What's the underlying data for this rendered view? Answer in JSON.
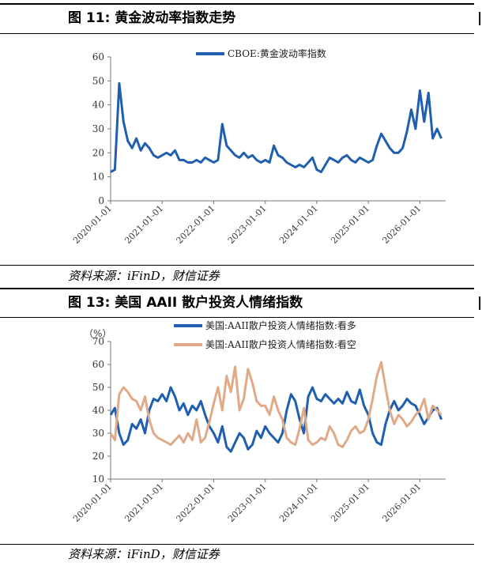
{
  "figure1": {
    "title": "图 11:  黄金波动率指数走势",
    "source": "资料来源：iFinD，财信证券"
  },
  "figure2": {
    "title": "图 13:  美国 AAII 散户投资人情绪指数",
    "source": "资料来源：iFinD，财信证券"
  },
  "chart_data": [
    {
      "type": "line",
      "title": "",
      "xlabel": "",
      "ylabel": "",
      "ylim": [
        0,
        60
      ],
      "yticks": [
        0,
        10,
        20,
        30,
        40,
        50,
        60
      ],
      "xticks": [
        "2020-01-01",
        "2021-01-01",
        "2022-01-01",
        "2023-01-01",
        "2024-01-01",
        "2025-01-01",
        "2026-01-01"
      ],
      "legend_position": "top-center",
      "series": [
        {
          "name": "CBOE:黄金波动率指数",
          "color": "#1f5fae",
          "x": [
            "2020-01",
            "2020-02",
            "2020-03",
            "2020-04",
            "2020-05",
            "2020-06",
            "2020-07",
            "2020-08",
            "2020-09",
            "2020-10",
            "2020-11",
            "2020-12",
            "2021-01",
            "2021-02",
            "2021-03",
            "2021-04",
            "2021-05",
            "2021-06",
            "2021-07",
            "2021-08",
            "2021-09",
            "2021-10",
            "2021-11",
            "2021-12",
            "2022-01",
            "2022-02",
            "2022-03",
            "2022-04",
            "2022-05",
            "2022-06",
            "2022-07",
            "2022-08",
            "2022-09",
            "2022-10",
            "2022-11",
            "2022-12",
            "2023-01",
            "2023-02",
            "2023-03",
            "2023-04",
            "2023-05",
            "2023-06",
            "2023-07",
            "2023-08",
            "2023-09",
            "2023-10",
            "2023-11",
            "2023-12",
            "2024-01",
            "2024-02",
            "2024-03",
            "2024-04",
            "2024-05",
            "2024-06",
            "2024-07",
            "2024-08",
            "2024-09",
            "2024-10",
            "2024-11",
            "2024-12",
            "2025-01",
            "2025-02",
            "2025-03",
            "2025-04",
            "2025-05",
            "2025-06",
            "2025-07",
            "2025-08",
            "2025-09",
            "2025-10",
            "2025-11",
            "2025-12",
            "2026-01",
            "2026-02",
            "2026-03",
            "2026-04",
            "2026-05",
            "2026-06"
          ],
          "values": [
            12,
            13,
            49,
            33,
            25,
            22,
            26,
            21,
            24,
            22,
            19,
            18,
            19,
            20,
            19,
            21,
            17,
            17,
            16,
            16,
            17,
            16,
            18,
            17,
            16,
            17,
            32,
            23,
            21,
            19,
            18,
            20,
            18,
            19,
            17,
            16,
            17,
            16,
            23,
            19,
            18,
            16,
            15,
            14,
            15,
            14,
            16,
            18,
            13,
            12,
            15,
            18,
            17,
            16,
            18,
            19,
            17,
            16,
            18,
            17,
            16,
            17,
            23,
            28,
            25,
            22,
            20,
            20,
            22,
            29,
            38,
            30,
            46,
            33,
            45,
            26,
            30,
            26
          ]
        }
      ]
    },
    {
      "type": "line",
      "title": "",
      "xlabel": "",
      "ylabel": "（%）",
      "ylim": [
        10,
        70
      ],
      "yticks": [
        10,
        20,
        30,
        40,
        50,
        60,
        70
      ],
      "xticks": [
        "2020-01-01",
        "2021-01-01",
        "2022-01-01",
        "2023-01-01",
        "2024-01-01",
        "2025-01-01",
        "2026-01-01"
      ],
      "legend_position": "top-center",
      "series": [
        {
          "name": "美国:AAII散户投资人情绪指数:看多",
          "color": "#1f5fae",
          "x": [
            "2020-01",
            "2020-02",
            "2020-03",
            "2020-04",
            "2020-05",
            "2020-06",
            "2020-07",
            "2020-08",
            "2020-09",
            "2020-10",
            "2020-11",
            "2020-12",
            "2021-01",
            "2021-02",
            "2021-03",
            "2021-04",
            "2021-05",
            "2021-06",
            "2021-07",
            "2021-08",
            "2021-09",
            "2021-10",
            "2021-11",
            "2021-12",
            "2022-01",
            "2022-02",
            "2022-03",
            "2022-04",
            "2022-05",
            "2022-06",
            "2022-07",
            "2022-08",
            "2022-09",
            "2022-10",
            "2022-11",
            "2022-12",
            "2023-01",
            "2023-02",
            "2023-03",
            "2023-04",
            "2023-05",
            "2023-06",
            "2023-07",
            "2023-08",
            "2023-09",
            "2023-10",
            "2023-11",
            "2023-12",
            "2024-01",
            "2024-02",
            "2024-03",
            "2024-04",
            "2024-05",
            "2024-06",
            "2024-07",
            "2024-08",
            "2024-09",
            "2024-10",
            "2024-11",
            "2024-12",
            "2025-01",
            "2025-02",
            "2025-03",
            "2025-04",
            "2025-05",
            "2025-06",
            "2025-07",
            "2025-08",
            "2025-09",
            "2025-10",
            "2025-11",
            "2025-12",
            "2026-01",
            "2026-02",
            "2026-03",
            "2026-04",
            "2026-05",
            "2026-06"
          ],
          "values": [
            38,
            41,
            30,
            25,
            27,
            34,
            32,
            36,
            30,
            40,
            45,
            44,
            47,
            44,
            50,
            46,
            40,
            43,
            38,
            42,
            40,
            44,
            38,
            33,
            30,
            26,
            33,
            24,
            22,
            26,
            30,
            28,
            23,
            25,
            31,
            28,
            33,
            30,
            28,
            26,
            30,
            40,
            47,
            44,
            36,
            30,
            46,
            50,
            45,
            44,
            47,
            45,
            43,
            45,
            43,
            48,
            44,
            43,
            49,
            42,
            38,
            30,
            26,
            25,
            34,
            40,
            44,
            40,
            42,
            45,
            43,
            42,
            38,
            34,
            37,
            40,
            41,
            36
          ]
        },
        {
          "name": "美国:AAII散户投资人情绪指数:看空",
          "color": "#e0aa88",
          "x": [
            "2020-01",
            "2020-02",
            "2020-03",
            "2020-04",
            "2020-05",
            "2020-06",
            "2020-07",
            "2020-08",
            "2020-09",
            "2020-10",
            "2020-11",
            "2020-12",
            "2021-01",
            "2021-02",
            "2021-03",
            "2021-04",
            "2021-05",
            "2021-06",
            "2021-07",
            "2021-08",
            "2021-09",
            "2021-10",
            "2021-11",
            "2021-12",
            "2022-01",
            "2022-02",
            "2022-03",
            "2022-04",
            "2022-05",
            "2022-06",
            "2022-07",
            "2022-08",
            "2022-09",
            "2022-10",
            "2022-11",
            "2022-12",
            "2023-01",
            "2023-02",
            "2023-03",
            "2023-04",
            "2023-05",
            "2023-06",
            "2023-07",
            "2023-08",
            "2023-09",
            "2023-10",
            "2023-11",
            "2023-12",
            "2024-01",
            "2024-02",
            "2024-03",
            "2024-04",
            "2024-05",
            "2024-06",
            "2024-07",
            "2024-08",
            "2024-09",
            "2024-10",
            "2024-11",
            "2024-12",
            "2025-01",
            "2025-02",
            "2025-03",
            "2025-04",
            "2025-05",
            "2025-06",
            "2025-07",
            "2025-08",
            "2025-09",
            "2025-10",
            "2025-11",
            "2025-12",
            "2026-01",
            "2026-02",
            "2026-03",
            "2026-04",
            "2026-05",
            "2026-06"
          ],
          "values": [
            30,
            27,
            47,
            50,
            48,
            45,
            44,
            40,
            46,
            36,
            30,
            28,
            27,
            26,
            25,
            27,
            29,
            26,
            30,
            27,
            36,
            26,
            28,
            35,
            43,
            50,
            40,
            55,
            48,
            59,
            40,
            45,
            58,
            52,
            44,
            42,
            42,
            38,
            46,
            40,
            36,
            28,
            26,
            25,
            32,
            41,
            27,
            25,
            26,
            28,
            27,
            33,
            30,
            25,
            24,
            27,
            31,
            33,
            30,
            31,
            36,
            45,
            55,
            61,
            50,
            40,
            34,
            38,
            36,
            33,
            35,
            38,
            40,
            45,
            36,
            42,
            40,
            38
          ]
        }
      ]
    }
  ]
}
